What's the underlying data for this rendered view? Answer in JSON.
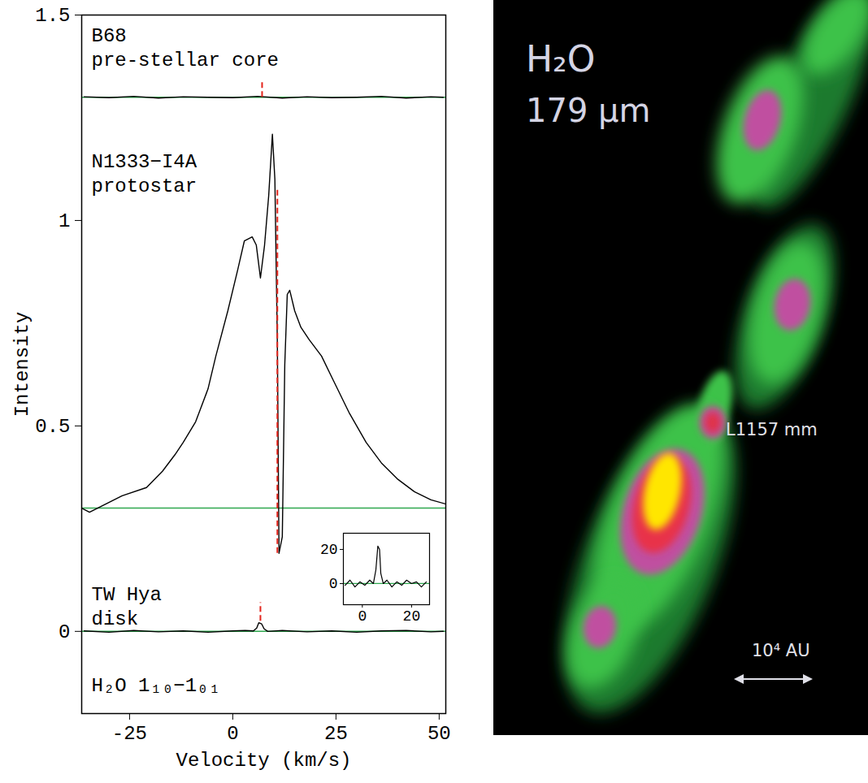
{
  "chart_data": [
    {
      "type": "line",
      "xlabel": "Velocity (km/s)",
      "ylabel": "Intensity",
      "xlim": [
        -36.6,
        51.6
      ],
      "ylim": [
        -0.2,
        1.5
      ],
      "xticks": [
        -25,
        0,
        25,
        50
      ],
      "yticks": [
        0,
        0.5,
        1,
        1.5
      ],
      "annotations": [
        "H₂O 1₁₀−1₀₁"
      ],
      "series": [
        {
          "name": "B68",
          "description": "pre-stellar core",
          "color": "#000000",
          "baseline": 1.3,
          "baseline_color": "#2fa84f",
          "reference": {
            "x": 7.1,
            "y": [
              1.3,
              1.34
            ],
            "color": "#e3241b",
            "line_style": "dashed"
          },
          "x": [
            -36,
            -30,
            -24,
            -18,
            -12,
            -6,
            0,
            6,
            12,
            18,
            24,
            30,
            36,
            42,
            48,
            51
          ],
          "values": [
            1.301,
            1.299,
            1.302,
            1.298,
            1.301,
            1.3,
            1.299,
            1.302,
            1.298,
            1.301,
            1.299,
            1.3,
            1.302,
            1.298,
            1.301,
            1.3
          ]
        },
        {
          "name": "N1333−I4A",
          "description": "protostar",
          "color": "#000000",
          "baseline": 0.3,
          "baseline_color": "#2fa84f",
          "reference": {
            "x": 10.8,
            "y": [
              0.19,
              1.08
            ],
            "color": "#e3241b",
            "line_style": "dashed"
          },
          "x": [
            -36.6,
            -34.7,
            -26.8,
            -20.9,
            -17,
            -14,
            -12,
            -9,
            -6,
            -4.1,
            -1.2,
            1.2,
            2.8,
            4.7,
            5.7,
            6.7,
            7.7,
            8.7,
            9.6,
            10.2,
            10.8,
            11.2,
            12,
            12.6,
            13.2,
            13.8,
            15,
            16.5,
            18.5,
            21.5,
            24.4,
            28.3,
            32.3,
            36,
            40,
            44,
            48,
            51.6
          ],
          "values": [
            0.3,
            0.29,
            0.33,
            0.35,
            0.39,
            0.43,
            0.46,
            0.51,
            0.59,
            0.67,
            0.78,
            0.88,
            0.95,
            0.96,
            0.94,
            0.86,
            0.94,
            1.06,
            1.21,
            1.1,
            0.7,
            0.19,
            0.23,
            0.65,
            0.82,
            0.83,
            0.78,
            0.74,
            0.71,
            0.67,
            0.61,
            0.53,
            0.46,
            0.41,
            0.37,
            0.34,
            0.32,
            0.31
          ]
        },
        {
          "name": "TW Hya",
          "description": "disk",
          "color": "#000000",
          "baseline": 0,
          "baseline_color": "#2fa84f",
          "reference": {
            "x": 6.7,
            "y": [
              0.025,
              0.07
            ],
            "color": "#e3241b",
            "line_style": "dashed"
          },
          "x": [
            -36,
            -30,
            -24,
            -18,
            -12,
            -6,
            0,
            3,
            5,
            5.8,
            6.3,
            7,
            7.6,
            8.5,
            12,
            18,
            24,
            30,
            36,
            42,
            48,
            51
          ],
          "values": [
            0.001,
            -0.002,
            0.002,
            -0.001,
            0.001,
            -0.002,
            0.001,
            0.002,
            0.001,
            0.008,
            0.021,
            0.018,
            0.006,
            0,
            0.002,
            -0.001,
            0.001,
            -0.002,
            0.001,
            0.002,
            -0.001,
            0
          ]
        }
      ]
    },
    {
      "type": "line",
      "xlim": [
        -7.7,
        27.3
      ],
      "ylim": [
        -12.4,
        29.5
      ],
      "xticks": [
        0,
        20
      ],
      "yticks": [
        0,
        20
      ],
      "series": [
        {
          "color": "#000000",
          "baseline": 0,
          "baseline_color": "#2fa84f",
          "x": [
            -7,
            -5,
            -3,
            -1,
            1,
            3,
            4.5,
            5.5,
            6.3,
            7,
            7.5,
            8.5,
            10,
            12,
            14,
            16,
            18,
            20,
            22,
            24,
            26
          ],
          "values": [
            -1,
            2,
            -2,
            1,
            -1,
            2,
            0,
            8,
            22,
            20,
            6,
            0,
            2,
            -2,
            1,
            -1,
            2,
            0,
            1,
            -2,
            1
          ]
        }
      ]
    }
  ],
  "map_panel": {
    "title": "H₂O",
    "subtitle": "179 µm",
    "source_label": "L1157 mm",
    "scale_bar": "10⁴ AU"
  }
}
